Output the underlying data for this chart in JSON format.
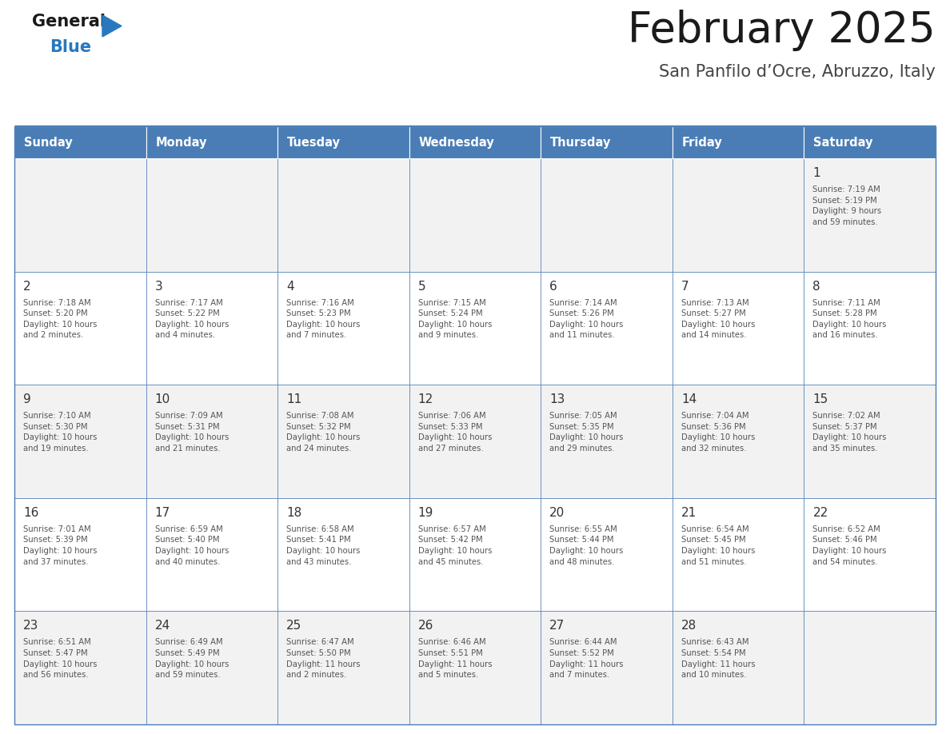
{
  "title": "February 2025",
  "subtitle": "San Panfilo d’Ocre, Abruzzo, Italy",
  "days_of_week": [
    "Sunday",
    "Monday",
    "Tuesday",
    "Wednesday",
    "Thursday",
    "Friday",
    "Saturday"
  ],
  "header_bg": "#4A7DB5",
  "header_text": "#FFFFFF",
  "row_bg_odd": "#F2F2F2",
  "row_bg_even": "#FFFFFF",
  "cell_border_color": "#4A7DB5",
  "text_color": "#555555",
  "day_number_color": "#333333",
  "title_color": "#1a1a1a",
  "subtitle_color": "#444444",
  "logo_general_color": "#1a1a1a",
  "logo_blue_color": "#2878BE",
  "calendar": [
    [
      null,
      null,
      null,
      null,
      null,
      null,
      {
        "day": 1,
        "sunrise": "7:19 AM",
        "sunset": "5:19 PM",
        "daylight": "9 hours\nand 59 minutes."
      }
    ],
    [
      {
        "day": 2,
        "sunrise": "7:18 AM",
        "sunset": "5:20 PM",
        "daylight": "10 hours\nand 2 minutes."
      },
      {
        "day": 3,
        "sunrise": "7:17 AM",
        "sunset": "5:22 PM",
        "daylight": "10 hours\nand 4 minutes."
      },
      {
        "day": 4,
        "sunrise": "7:16 AM",
        "sunset": "5:23 PM",
        "daylight": "10 hours\nand 7 minutes."
      },
      {
        "day": 5,
        "sunrise": "7:15 AM",
        "sunset": "5:24 PM",
        "daylight": "10 hours\nand 9 minutes."
      },
      {
        "day": 6,
        "sunrise": "7:14 AM",
        "sunset": "5:26 PM",
        "daylight": "10 hours\nand 11 minutes."
      },
      {
        "day": 7,
        "sunrise": "7:13 AM",
        "sunset": "5:27 PM",
        "daylight": "10 hours\nand 14 minutes."
      },
      {
        "day": 8,
        "sunrise": "7:11 AM",
        "sunset": "5:28 PM",
        "daylight": "10 hours\nand 16 minutes."
      }
    ],
    [
      {
        "day": 9,
        "sunrise": "7:10 AM",
        "sunset": "5:30 PM",
        "daylight": "10 hours\nand 19 minutes."
      },
      {
        "day": 10,
        "sunrise": "7:09 AM",
        "sunset": "5:31 PM",
        "daylight": "10 hours\nand 21 minutes."
      },
      {
        "day": 11,
        "sunrise": "7:08 AM",
        "sunset": "5:32 PM",
        "daylight": "10 hours\nand 24 minutes."
      },
      {
        "day": 12,
        "sunrise": "7:06 AM",
        "sunset": "5:33 PM",
        "daylight": "10 hours\nand 27 minutes."
      },
      {
        "day": 13,
        "sunrise": "7:05 AM",
        "sunset": "5:35 PM",
        "daylight": "10 hours\nand 29 minutes."
      },
      {
        "day": 14,
        "sunrise": "7:04 AM",
        "sunset": "5:36 PM",
        "daylight": "10 hours\nand 32 minutes."
      },
      {
        "day": 15,
        "sunrise": "7:02 AM",
        "sunset": "5:37 PM",
        "daylight": "10 hours\nand 35 minutes."
      }
    ],
    [
      {
        "day": 16,
        "sunrise": "7:01 AM",
        "sunset": "5:39 PM",
        "daylight": "10 hours\nand 37 minutes."
      },
      {
        "day": 17,
        "sunrise": "6:59 AM",
        "sunset": "5:40 PM",
        "daylight": "10 hours\nand 40 minutes."
      },
      {
        "day": 18,
        "sunrise": "6:58 AM",
        "sunset": "5:41 PM",
        "daylight": "10 hours\nand 43 minutes."
      },
      {
        "day": 19,
        "sunrise": "6:57 AM",
        "sunset": "5:42 PM",
        "daylight": "10 hours\nand 45 minutes."
      },
      {
        "day": 20,
        "sunrise": "6:55 AM",
        "sunset": "5:44 PM",
        "daylight": "10 hours\nand 48 minutes."
      },
      {
        "day": 21,
        "sunrise": "6:54 AM",
        "sunset": "5:45 PM",
        "daylight": "10 hours\nand 51 minutes."
      },
      {
        "day": 22,
        "sunrise": "6:52 AM",
        "sunset": "5:46 PM",
        "daylight": "10 hours\nand 54 minutes."
      }
    ],
    [
      {
        "day": 23,
        "sunrise": "6:51 AM",
        "sunset": "5:47 PM",
        "daylight": "10 hours\nand 56 minutes."
      },
      {
        "day": 24,
        "sunrise": "6:49 AM",
        "sunset": "5:49 PM",
        "daylight": "10 hours\nand 59 minutes."
      },
      {
        "day": 25,
        "sunrise": "6:47 AM",
        "sunset": "5:50 PM",
        "daylight": "11 hours\nand 2 minutes."
      },
      {
        "day": 26,
        "sunrise": "6:46 AM",
        "sunset": "5:51 PM",
        "daylight": "11 hours\nand 5 minutes."
      },
      {
        "day": 27,
        "sunrise": "6:44 AM",
        "sunset": "5:52 PM",
        "daylight": "11 hours\nand 7 minutes."
      },
      {
        "day": 28,
        "sunrise": "6:43 AM",
        "sunset": "5:54 PM",
        "daylight": "11 hours\nand 10 minutes."
      },
      null
    ]
  ]
}
